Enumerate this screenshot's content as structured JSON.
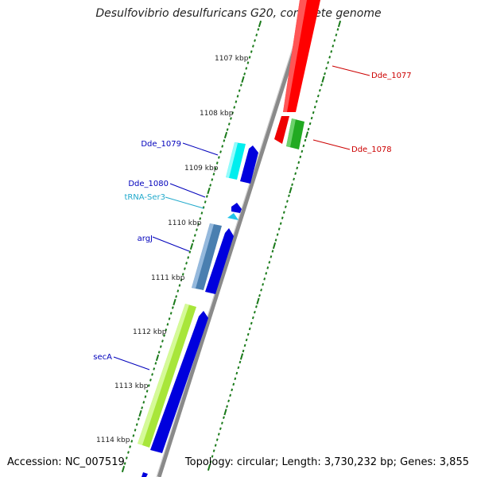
{
  "title": "Desulfovibrio desulfuricans G20, complete genome",
  "accession": "Accession: NC_007519",
  "summary": "Topology: circular; Length: 3,730,232 bp; Genes: 3,855",
  "ticks": [
    "1107 kbp",
    "1108 kbp",
    "1109 kbp",
    "1110 kbp",
    "1111 kbp",
    "1112 kbp",
    "1113 kbp",
    "1114 kbp"
  ],
  "genes": [
    {
      "label": "Dde_1077",
      "color": "#cc0000"
    },
    {
      "label": "Dde_1078",
      "color": "#cc0000"
    },
    {
      "label": "Dde_1079",
      "color": "#0000bb"
    },
    {
      "label": "Dde_1080",
      "color": "#0000bb"
    },
    {
      "label": "tRNA-Ser3",
      "color": "#22aacc"
    },
    {
      "label": "argJ",
      "color": "#0000bb"
    },
    {
      "label": "secA",
      "color": "#0000bb"
    }
  ],
  "colors": {
    "backbone": "#8a8a8a",
    "tick": "#1a7a1a",
    "red": "#ff0000",
    "green": "#22aa22",
    "cyan": "#00eeee",
    "blue": "#0000dd",
    "steel": "#4a7fb0",
    "lime": "#a8e63a",
    "trna": "#22c4e8"
  }
}
